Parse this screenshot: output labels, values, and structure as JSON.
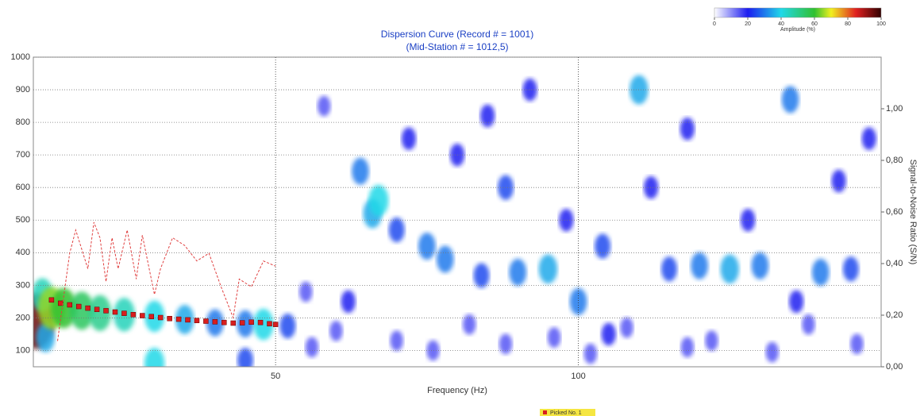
{
  "chart_data": {
    "type": "heatmap",
    "title": [
      "Dispersion Curve (Record # = 1001)",
      "(Mid-Station # = 1012,5)"
    ],
    "x_label": "Frequency (Hz)",
    "y2_label": "Signal-to-Noise Ratio (S/N)",
    "xlim": [
      10,
      150
    ],
    "xticks": [
      50,
      100
    ],
    "ylim": [
      50,
      1000
    ],
    "yticks": [
      100,
      200,
      300,
      400,
      500,
      600,
      700,
      800,
      900,
      1000
    ],
    "y2lim": [
      0,
      1.2
    ],
    "y2ticks": [
      {
        "value": 0,
        "label": "0,00"
      },
      {
        "value": 0.2,
        "label": "0,20"
      },
      {
        "value": 0.4,
        "label": "0,40"
      },
      {
        "value": 0.6,
        "label": "0,60"
      },
      {
        "value": 0.8,
        "label": "0,80"
      },
      {
        "value": 1.0,
        "label": "1,00"
      }
    ],
    "grid": true,
    "heatmap": {
      "x": [
        10.5,
        11.5,
        12,
        13,
        15,
        18,
        21,
        25,
        30,
        35,
        40,
        45,
        48,
        52,
        55,
        58,
        62,
        64,
        66,
        67,
        70,
        72,
        75,
        78,
        80,
        84,
        85,
        88,
        90,
        92,
        95,
        98,
        100,
        104,
        105,
        110,
        112,
        115,
        118,
        120,
        125,
        128,
        130,
        135,
        136,
        140,
        143,
        145,
        148,
        60,
        70,
        82,
        96,
        108,
        122,
        138,
        30,
        45,
        56,
        76,
        88,
        102,
        118,
        132,
        146
      ],
      "y": [
        190,
        270,
        140,
        230,
        230,
        222,
        215,
        210,
        205,
        195,
        185,
        182,
        180,
        175,
        280,
        850,
        250,
        650,
        520,
        560,
        470,
        750,
        420,
        380,
        700,
        330,
        820,
        600,
        340,
        900,
        350,
        500,
        250,
        420,
        150,
        900,
        600,
        350,
        780,
        360,
        350,
        500,
        360,
        870,
        250,
        340,
        620,
        350,
        750,
        160,
        130,
        180,
        140,
        170,
        130,
        180,
        60,
        70,
        110,
        100,
        120,
        90,
        110,
        95,
        120
      ],
      "values": [
        95,
        45,
        35,
        65,
        60,
        55,
        50,
        45,
        40,
        35,
        30,
        30,
        40,
        25,
        15,
        15,
        20,
        30,
        35,
        40,
        25,
        20,
        30,
        30,
        20,
        25,
        20,
        25,
        30,
        20,
        35,
        20,
        30,
        25,
        20,
        35,
        20,
        25,
        20,
        30,
        35,
        20,
        30,
        30,
        20,
        30,
        20,
        25,
        20,
        15,
        15,
        15,
        15,
        15,
        15,
        15,
        40,
        25,
        15,
        15,
        15,
        15,
        15,
        15,
        15
      ],
      "colorbar": {
        "label": "Amplitude (%)",
        "lim": [
          0,
          100
        ],
        "ticks": [
          0,
          20,
          40,
          60,
          80,
          100
        ]
      }
    },
    "series": [
      {
        "name": "Picked No. 1",
        "type": "scatter",
        "color": "#d81e1e",
        "x": [
          13,
          14.5,
          16,
          17.5,
          19,
          20.5,
          22,
          23.5,
          25,
          26.5,
          28,
          29.5,
          31,
          32.5,
          34,
          35.5,
          37,
          38.5,
          40,
          41.5,
          43,
          44.5,
          46,
          47.5,
          49,
          50
        ],
        "values": [
          255,
          245,
          240,
          235,
          230,
          226,
          222,
          218,
          214,
          210,
          207,
          204,
          201,
          198,
          196,
          194,
          192,
          190,
          188,
          186,
          184,
          185,
          187,
          186,
          182,
          180
        ]
      },
      {
        "type": "line",
        "axis": "y2",
        "color": "#e04040",
        "x": [
          14,
          16,
          17,
          19,
          20,
          21,
          22,
          23,
          24,
          25.5,
          27,
          28,
          30,
          31,
          33,
          35,
          37,
          39,
          41,
          43,
          44,
          46,
          48,
          50
        ],
        "values": [
          0.1,
          0.44,
          0.53,
          0.38,
          0.56,
          0.5,
          0.33,
          0.5,
          0.38,
          0.53,
          0.34,
          0.51,
          0.28,
          0.38,
          0.5,
          0.47,
          0.41,
          0.44,
          0.31,
          0.19,
          0.34,
          0.31,
          0.41,
          0.39
        ]
      }
    ]
  }
}
